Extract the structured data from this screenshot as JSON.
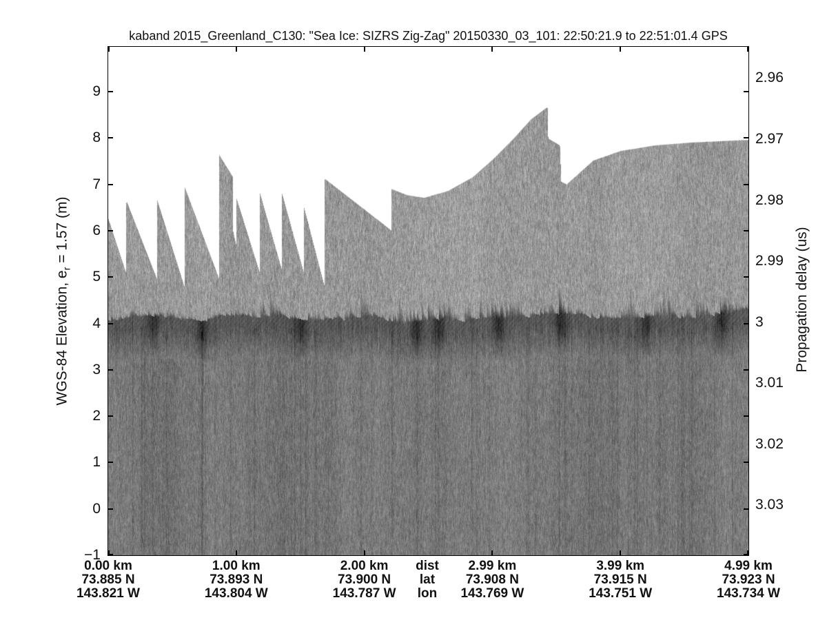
{
  "title": "kaband 2015_Greenland_C130: \"Sea Ice: SIZRS Zig-Zag\"  20150330_03_101: 22:50:21.9 to 22:51:01.4 GPS",
  "left_axis": {
    "label_pre": "WGS-84 Elevation, e",
    "label_sub": "r",
    "label_post": " = 1.57 (m)",
    "tick_values": [
      9,
      8,
      7,
      6,
      5,
      4,
      3,
      2,
      1,
      0,
      -1
    ],
    "tick_labels": [
      "9",
      "8",
      "7",
      "6",
      "5",
      "4",
      "3",
      "2",
      "1",
      "0",
      "−1"
    ]
  },
  "right_axis": {
    "label": "Propagation delay (us)",
    "tick_labels": [
      "2.96",
      "2.97",
      "2.98",
      "2.99",
      "3",
      "3.01",
      "3.02",
      "3.03"
    ],
    "tick_values_us": [
      2.96,
      2.97,
      2.98,
      2.99,
      3.0,
      3.01,
      3.02,
      3.03
    ]
  },
  "x_axis": {
    "header": {
      "dist": "dist",
      "lat": "lat",
      "lon": "lon"
    },
    "columns": [
      {
        "dist": "0.00 km",
        "lat": "73.885 N",
        "lon": "143.821 W"
      },
      {
        "dist": "1.00 km",
        "lat": "73.893 N",
        "lon": "143.804 W"
      },
      {
        "dist": "2.00 km",
        "lat": "73.900 N",
        "lon": "143.787 W"
      },
      {
        "dist": "2.99 km",
        "lat": "73.908 N",
        "lon": "143.769 W"
      },
      {
        "dist": "3.99 km",
        "lat": "73.915 N",
        "lon": "143.751 W"
      },
      {
        "dist": "4.99 km",
        "lat": "73.923 N",
        "lon": "143.734 W"
      }
    ]
  },
  "chart_data": {
    "type": "heatmap",
    "title": "kaband 2015_Greenland_C130: \"Sea Ice: SIZRS Zig-Zag\"  20150330_03_101: 22:50:21.9 to 22:51:01.4 GPS",
    "colormap": "grayscale radar echogram (white = no data, dark = strong return)",
    "x_range_km": [
      0,
      5
    ],
    "x_tick_km": [
      0,
      1,
      2,
      3,
      4,
      5
    ],
    "x_tick_dist_labels": [
      "0.00 km",
      "1.00 km",
      "2.00 km",
      "2.99 km",
      "3.99 km",
      "4.99 km"
    ],
    "ylabel_left": "WGS-84 Elevation, e_r = 1.57 (m)",
    "ylim_left_m": [
      -1,
      9.97
    ],
    "yticks_left_m": [
      9,
      8,
      7,
      6,
      5,
      4,
      3,
      2,
      1,
      0,
      -1
    ],
    "ylabel_right": "Propagation delay (us)",
    "yticks_right_us": [
      2.96,
      2.97,
      2.98,
      2.99,
      3.0,
      3.01,
      3.02,
      3.03
    ],
    "grid": false,
    "legend": "none",
    "surface_elevation_m": 4.11,
    "data_window_top_envelope": {
      "km": [
        0.0,
        0.138,
        0.14,
        0.38,
        0.382,
        0.595,
        0.597,
        0.862,
        0.866,
        0.969,
        0.974,
        0.999,
        1.001,
        1.182,
        1.184,
        1.354,
        1.356,
        1.526,
        1.528,
        1.688,
        1.69,
        2.207,
        2.212,
        2.33,
        2.465,
        2.653,
        2.842,
        3.003,
        3.165,
        3.299,
        3.42,
        3.43,
        3.434,
        3.525,
        3.536,
        3.579,
        3.676,
        3.784,
        3.999,
        4.268,
        4.537,
        5.0
      ],
      "elev_m": [
        6.27,
        5.11,
        6.67,
        4.97,
        6.67,
        4.8,
        6.95,
        5.0,
        7.65,
        7.19,
        6.0,
        5.7,
        6.71,
        5.11,
        6.82,
        5.18,
        6.82,
        5.11,
        6.52,
        4.81,
        7.14,
        6.03,
        6.92,
        6.79,
        6.73,
        6.88,
        7.17,
        7.56,
        8.01,
        8.42,
        8.67,
        8.67,
        8.01,
        7.86,
        7.08,
        7.02,
        7.26,
        7.53,
        7.74,
        7.86,
        7.92,
        7.98
      ]
    },
    "surface_mounds_km": [
      1.25,
      1.95,
      2.3,
      2.45,
      2.62,
      2.8,
      2.95,
      3.12,
      3.5,
      4.1,
      4.35,
      4.62,
      4.85
    ],
    "dark_patches_km": [
      0.35,
      0.73,
      1.5,
      2.41,
      2.58,
      3.05,
      3.53,
      4.2,
      4.79
    ],
    "dark_streaks": [
      {
        "km": 0.73,
        "strength": 38
      },
      {
        "km": 1.5,
        "strength": 12
      },
      {
        "km": 2.41,
        "strength": 16
      },
      {
        "km": 2.58,
        "strength": 18
      },
      {
        "km": 3.52,
        "strength": 14
      },
      {
        "km": 4.79,
        "strength": 12
      }
    ],
    "shade_levels": {
      "no_data": 255,
      "pre_surface_noise": 151,
      "surface_return_min": 58,
      "post_surface": 121
    }
  }
}
